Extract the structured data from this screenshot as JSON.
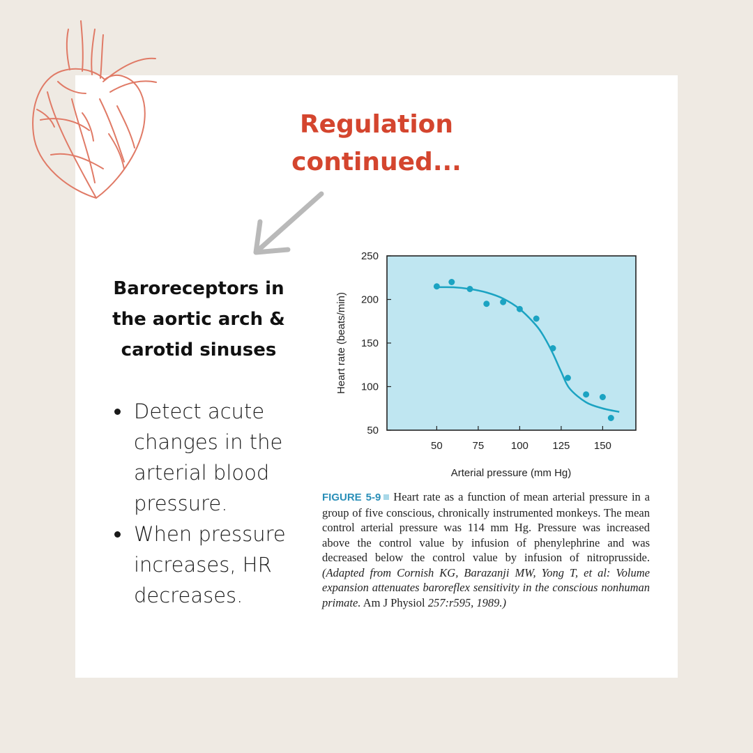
{
  "title": {
    "line1": "Regulation",
    "line2": "continued..."
  },
  "subheading": {
    "line1": "Baroreceptors in",
    "line2": "the aortic arch &",
    "line3": "carotid sinuses"
  },
  "bullets": [
    "Detect acute changes in the arterial blood pressure.",
    "When pressure increases, HR decreases."
  ],
  "colors": {
    "accent": "#d4452e",
    "plot_bg": "#bfe6f1",
    "series": "#1ba3c2",
    "page_bg": "#efeae3"
  },
  "icons": {
    "heart": "anatomical-heart-icon",
    "arrow": "arrow-down-left-icon"
  },
  "chart_data": {
    "type": "scatter",
    "xlabel": "Arterial pressure (mm Hg)",
    "ylabel": "Heart rate (beats/min)",
    "xlim": [
      20,
      170
    ],
    "ylim": [
      50,
      250
    ],
    "xticks": [
      50,
      75,
      100,
      125,
      150
    ],
    "yticks": [
      50,
      100,
      150,
      200,
      250
    ],
    "series": [
      {
        "name": "observed",
        "kind": "points",
        "x": [
          50,
          59,
          70,
          80,
          90,
          100,
          110,
          120,
          129,
          140,
          150,
          155
        ],
        "y": [
          215,
          220,
          212,
          195,
          197,
          189,
          178,
          144,
          110,
          91,
          88,
          64
        ]
      },
      {
        "name": "fitted curve",
        "kind": "line",
        "x": [
          50,
          60,
          70,
          80,
          90,
          100,
          110,
          115,
          120,
          125,
          130,
          140,
          150,
          160
        ],
        "y": [
          214,
          214,
          212,
          208,
          201,
          189,
          170,
          156,
          138,
          117,
          98,
          82,
          75,
          71
        ]
      }
    ]
  },
  "caption": {
    "figure_label": "FIGURE 5-9",
    "text": "Heart rate as a function of mean arterial pressure in a group of five conscious, chronically instrumented monkeys. The mean control arterial pressure was 114 mm Hg. Pressure was increased above the control value by infusion of phenylephrine and was decreased below the control value by infusion of nitroprusside.",
    "source_italic_1": "(Adapted from Cornish KG, Barazanji MW, Yong T, et al: Volume expansion attenuates baroreflex sensitivity in the conscious nonhuman primate.",
    "source_plain": "Am J Physiol",
    "source_italic_2": "257:r595, 1989.)"
  }
}
